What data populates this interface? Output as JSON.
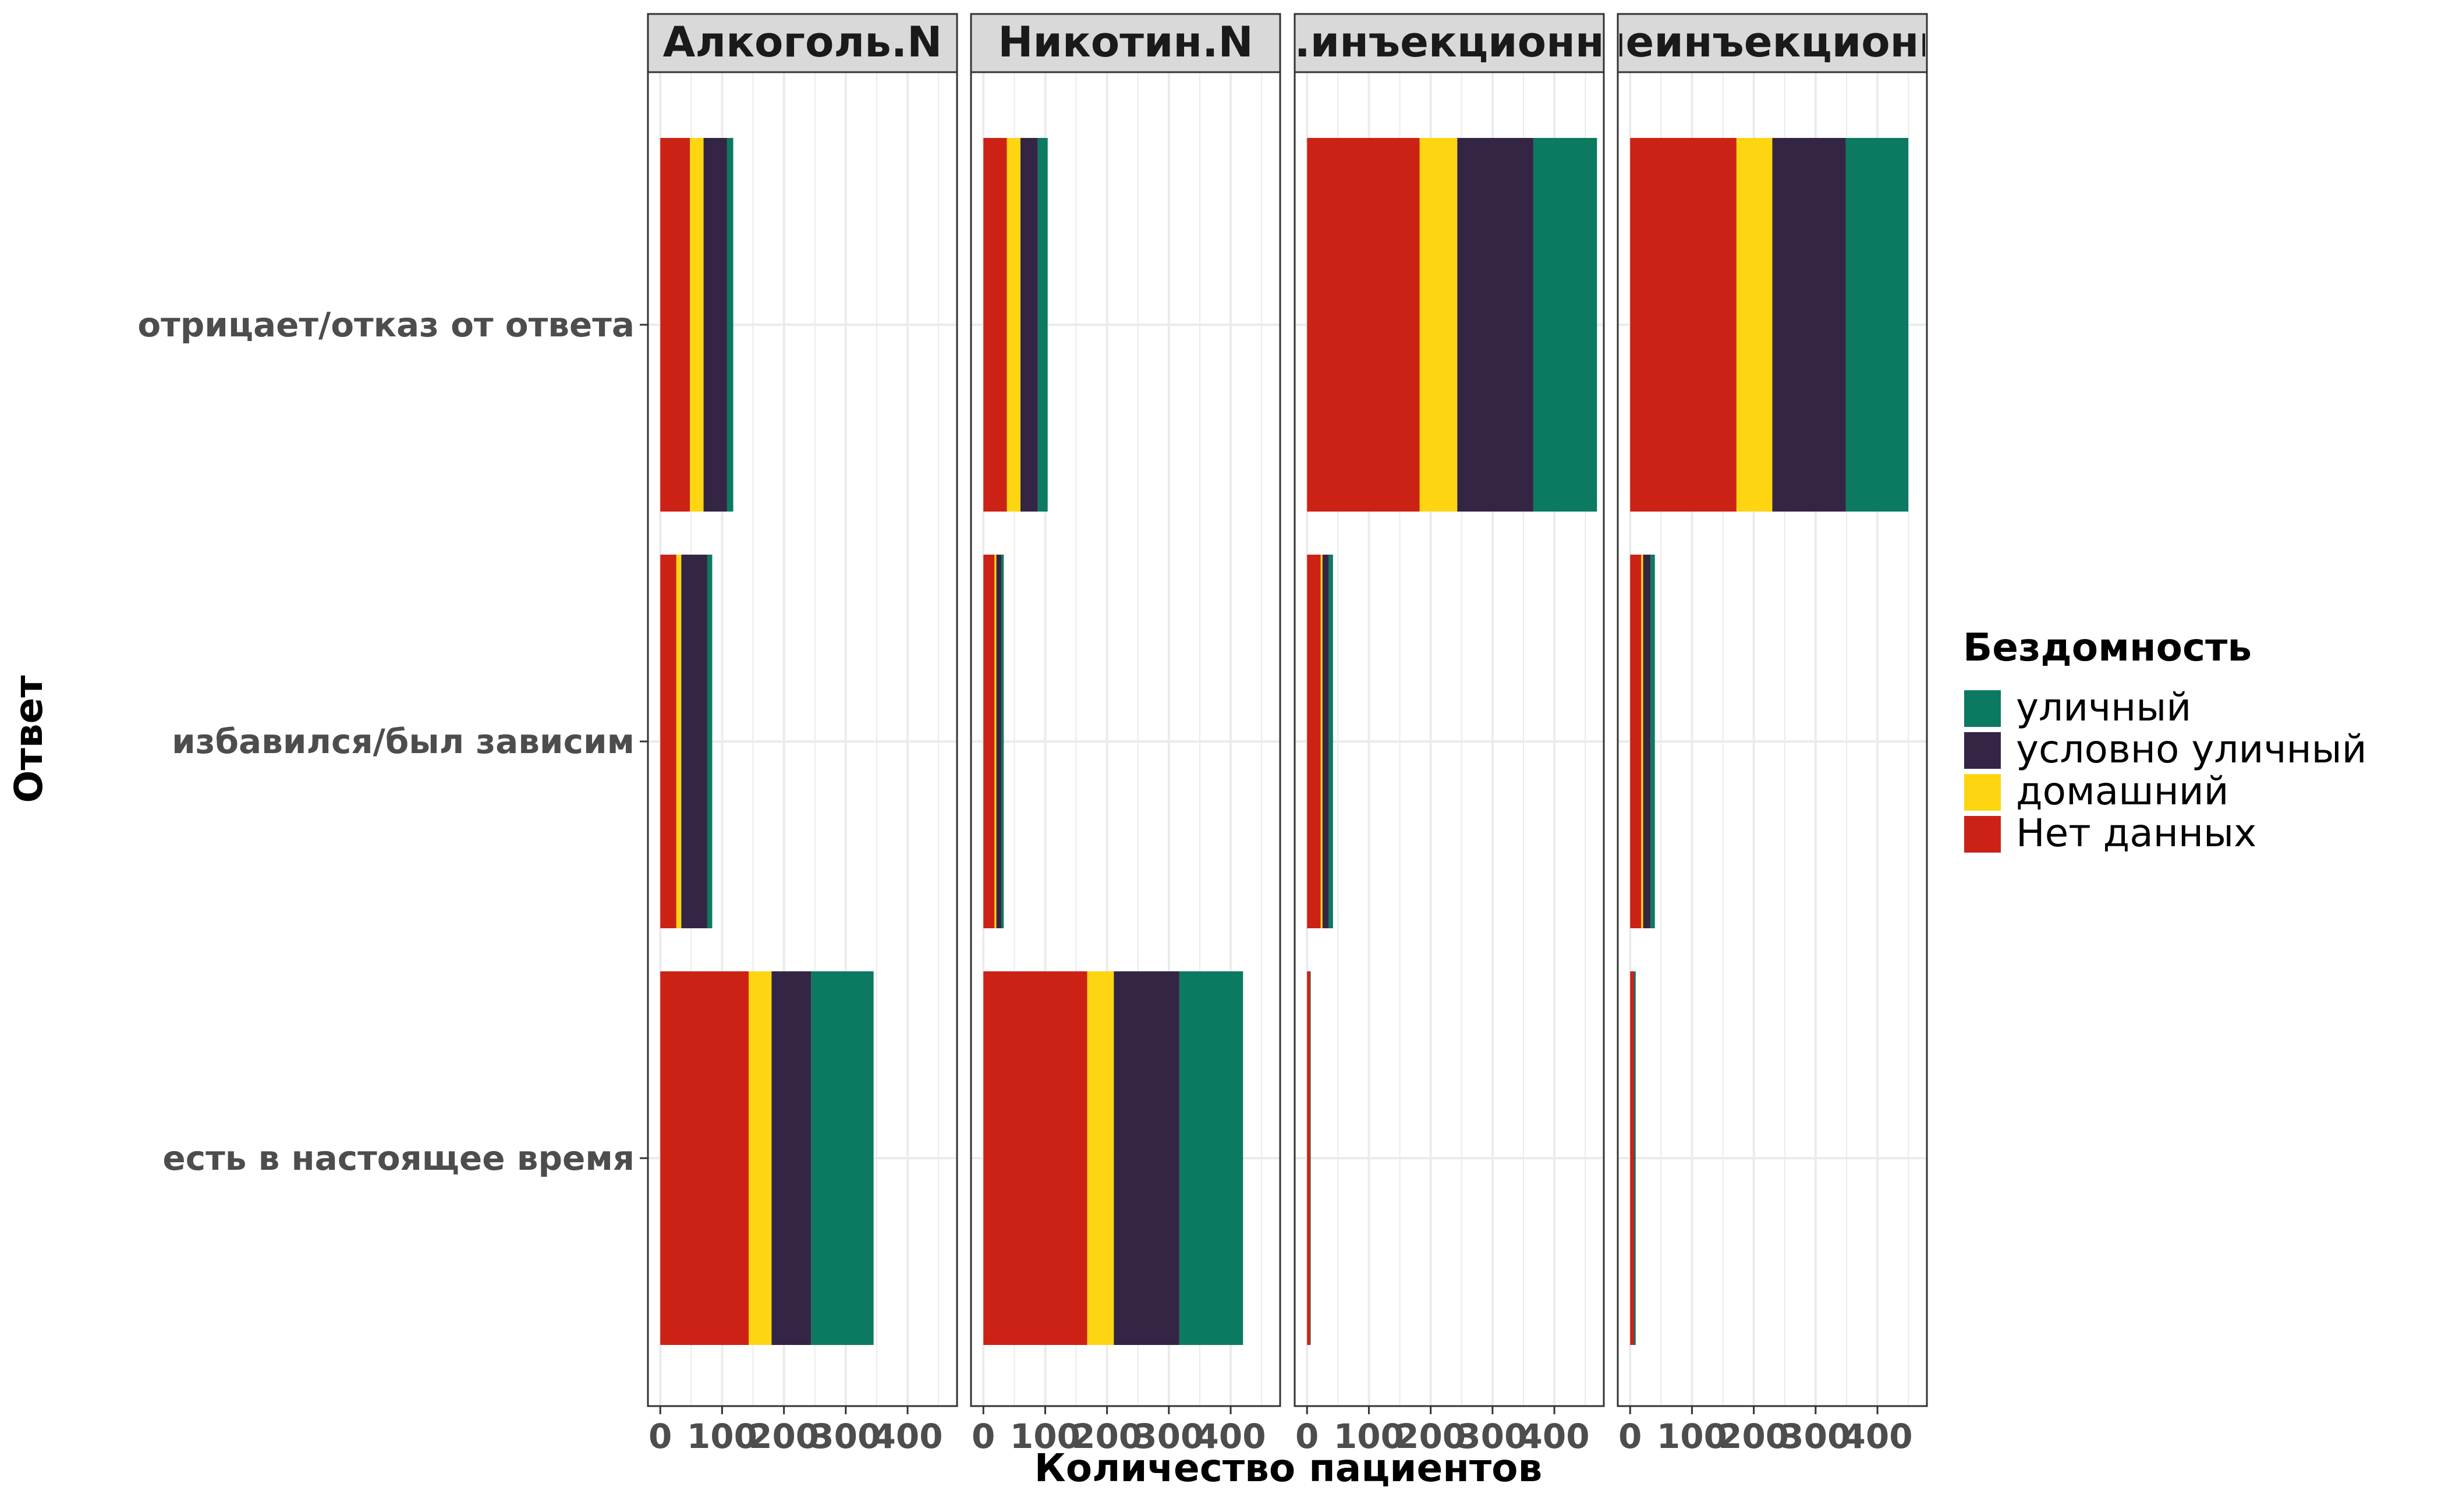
{
  "chart_data": {
    "type": "bar",
    "orientation": "horizontal",
    "stacked": true,
    "facet_titles": [
      "Алкоголь.N",
      "Никотин.N",
      ".инъекционн",
      "неинъекционн"
    ],
    "categories": [
      "отрицает/отказ от ответа",
      "избавился/был зависим",
      "есть в настоящее время"
    ],
    "xlabel": "Количество пациентов",
    "ylabel": "Ответ",
    "x_ticks": [
      "0",
      "100",
      "200",
      "300",
      "400"
    ],
    "xlim": [
      -20,
      480
    ],
    "grid": true,
    "legend": {
      "title": "Бездомность",
      "placement": "right",
      "entries": [
        "уличный",
        "условно уличный",
        "домашний",
        "Нет данных"
      ]
    },
    "stack_order": [
      "Нет данных",
      "домашний",
      "условно уличный",
      "уличный"
    ],
    "colors": {
      "Нет данных": "#CC2215",
      "домашний": "#FDD511",
      "условно уличный": "#342545",
      "уличный": "#0B7A61"
    },
    "facets": [
      {
        "title": "Алкоголь.N",
        "values": {
          "отрицает/отказ от ответа": {
            "Нет данных": 48,
            "домашний": 22,
            "условно уличный": 38,
            "уличный": 10
          },
          "избавился/был зависим": {
            "Нет данных": 26,
            "домашний": 8,
            "условно уличный": 42,
            "уличный": 8
          },
          "есть в настоящее время": {
            "Нет данных": 143,
            "домашний": 37,
            "условно уличный": 64,
            "уличный": 101
          }
        }
      },
      {
        "title": "Никотин.N",
        "values": {
          "отрицает/отказ от ответа": {
            "Нет данных": 38,
            "домашний": 22,
            "условно уличный": 28,
            "уличный": 16
          },
          "избавился/был зависим": {
            "Нет данных": 18,
            "домашний": 3,
            "условно уличный": 8,
            "уличный": 4
          },
          "есть в настоящее время": {
            "Нет данных": 168,
            "домашний": 43,
            "условно уличный": 106,
            "уличный": 103
          }
        }
      },
      {
        "title": ".инъекционн",
        "values": {
          "отрицает/отказ от ответа": {
            "Нет данных": 182,
            "домашний": 61,
            "условно уличный": 123,
            "уличный": 103
          },
          "избавился/был зависим": {
            "Нет данных": 22,
            "домашний": 3,
            "условно уличный": 10,
            "уличный": 7
          },
          "есть в настоящее время": {
            "Нет данных": 5,
            "домашний": 0,
            "условно уличный": 0,
            "уличный": 1
          }
        }
      },
      {
        "title": "неинъекционн",
        "values": {
          "отрицает/отказ от ответа": {
            "Нет данных": 172,
            "домашний": 58,
            "условно уличный": 119,
            "уличный": 101
          },
          "избавился/был зависим": {
            "Нет данных": 18,
            "домашний": 3,
            "условно уличный": 12,
            "уличный": 7
          },
          "есть в настоящее время": {
            "Нет данных": 6,
            "домашний": 0,
            "условно уличный": 1,
            "уличный": 2
          }
        }
      }
    ]
  }
}
